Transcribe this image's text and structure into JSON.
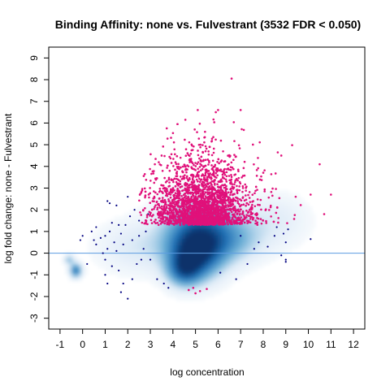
{
  "chart_data": {
    "type": "scatter",
    "title": "Binding Affinity: none vs. Fulvestrant (3532 FDR < 0.050)",
    "xlabel": "log concentration",
    "ylabel": "log fold change: none - Fulvestrant",
    "xlim": [
      -1.5,
      12.5
    ],
    "ylim": [
      -3.5,
      9.5
    ],
    "x_ticks": [
      -1,
      0,
      1,
      2,
      3,
      4,
      5,
      6,
      7,
      8,
      9,
      10,
      11,
      12
    ],
    "y_ticks": [
      -3,
      -2,
      -1,
      0,
      1,
      2,
      3,
      4,
      5,
      6,
      7,
      8,
      9
    ],
    "grid": false,
    "legend": "none",
    "reference_line": {
      "y": 0,
      "color": "#5b9be0"
    },
    "colors": {
      "significant": "#e0117a",
      "nonsignificant": "#000080",
      "density_dark": "#08306b",
      "density_light": "#deebf7"
    },
    "density_clusters": [
      {
        "x": 5.0,
        "y": 0.0,
        "sx": 0.8,
        "sy": 0.8,
        "weight": 1.0
      },
      {
        "x": 5.2,
        "y": 1.2,
        "sx": 1.1,
        "sy": 0.9,
        "weight": 0.55
      },
      {
        "x": 4.5,
        "y": -0.8,
        "sx": 0.5,
        "sy": 0.5,
        "weight": 0.6
      },
      {
        "x": 6.5,
        "y": 0.6,
        "sx": 1.0,
        "sy": 0.7,
        "weight": 0.35
      },
      {
        "x": 2.5,
        "y": 0.3,
        "sx": 1.2,
        "sy": 0.8,
        "weight": 0.18
      },
      {
        "x": -0.3,
        "y": -0.8,
        "sx": 0.18,
        "sy": 0.22,
        "weight": 0.7
      },
      {
        "x": -0.6,
        "y": -0.3,
        "sx": 0.15,
        "sy": 0.15,
        "weight": 0.35
      },
      {
        "x": 8.5,
        "y": 1.5,
        "sx": 1.0,
        "sy": 0.8,
        "weight": 0.15
      }
    ],
    "significant_summary": {
      "count": 3532,
      "x_range": [
        2.5,
        11.2
      ],
      "y_range": [
        1.3,
        6.7
      ],
      "core_center": [
        5.3,
        2.4
      ],
      "outliers": [
        {
          "x": 6.6,
          "y": 8.05
        },
        {
          "x": 7.0,
          "y": 6.6
        },
        {
          "x": 6.0,
          "y": 6.6
        },
        {
          "x": 5.9,
          "y": 6.5
        },
        {
          "x": 5.1,
          "y": 6.6
        },
        {
          "x": 10.5,
          "y": 4.1
        },
        {
          "x": 11.0,
          "y": 2.7
        },
        {
          "x": 10.7,
          "y": 1.8
        },
        {
          "x": 10.1,
          "y": 2.7
        },
        {
          "x": 8.8,
          "y": 4.5
        },
        {
          "x": 3.2,
          "y": 4.1
        },
        {
          "x": 3.5,
          "y": 4.5
        },
        {
          "x": 4.9,
          "y": -1.6
        },
        {
          "x": 4.7,
          "y": -1.7
        },
        {
          "x": 5.2,
          "y": -1.75
        },
        {
          "x": 5.0,
          "y": -1.85
        },
        {
          "x": 5.5,
          "y": -1.65
        }
      ]
    },
    "nonsignificant_points": [
      {
        "x": 0.0,
        "y": 0.8
      },
      {
        "x": -0.1,
        "y": 0.6
      },
      {
        "x": 0.4,
        "y": 1.0
      },
      {
        "x": 0.6,
        "y": 1.2
      },
      {
        "x": 0.5,
        "y": 0.6
      },
      {
        "x": 0.8,
        "y": 0.7
      },
      {
        "x": 1.0,
        "y": 0.8
      },
      {
        "x": 1.2,
        "y": 1.0
      },
      {
        "x": 1.1,
        "y": 0.2
      },
      {
        "x": 0.9,
        "y": 0.0
      },
      {
        "x": 0.6,
        "y": 0.4
      },
      {
        "x": 1.3,
        "y": 1.4
      },
      {
        "x": 1.6,
        "y": 1.3
      },
      {
        "x": 1.9,
        "y": 1.3
      },
      {
        "x": 1.2,
        "y": 2.3
      },
      {
        "x": 1.1,
        "y": 2.4
      },
      {
        "x": 1.5,
        "y": 2.2
      },
      {
        "x": 2.0,
        "y": 2.6
      },
      {
        "x": 2.3,
        "y": 2.0
      },
      {
        "x": 2.1,
        "y": 1.7
      },
      {
        "x": 1.7,
        "y": 0.9
      },
      {
        "x": 1.4,
        "y": 0.5
      },
      {
        "x": 1.8,
        "y": 0.4
      },
      {
        "x": 2.2,
        "y": 0.6
      },
      {
        "x": 2.5,
        "y": 0.8
      },
      {
        "x": 2.8,
        "y": 1.0
      },
      {
        "x": 1.0,
        "y": -0.3
      },
      {
        "x": 1.3,
        "y": -0.6
      },
      {
        "x": 1.0,
        "y": -1.0
      },
      {
        "x": 1.1,
        "y": -1.4
      },
      {
        "x": 1.6,
        "y": -0.8
      },
      {
        "x": 1.8,
        "y": -1.4
      },
      {
        "x": 1.7,
        "y": -1.8
      },
      {
        "x": 2.0,
        "y": -2.1
      },
      {
        "x": 2.2,
        "y": -1.2
      },
      {
        "x": 2.4,
        "y": -0.5
      },
      {
        "x": 2.6,
        "y": -0.3
      },
      {
        "x": 3.0,
        "y": -0.3
      },
      {
        "x": 3.3,
        "y": -1.2
      },
      {
        "x": 3.6,
        "y": -1.4
      },
      {
        "x": 3.8,
        "y": -1.6
      },
      {
        "x": 0.2,
        "y": -0.5
      },
      {
        "x": 1.5,
        "y": 0.1
      },
      {
        "x": 2.7,
        "y": 0.2
      },
      {
        "x": 2.9,
        "y": 1.8
      },
      {
        "x": 2.5,
        "y": 1.5
      },
      {
        "x": 6.8,
        "y": -1.2
      },
      {
        "x": 7.8,
        "y": 0.5
      },
      {
        "x": 8.2,
        "y": 0.3
      },
      {
        "x": 8.5,
        "y": 0.8
      },
      {
        "x": 8.8,
        "y": -0.1
      },
      {
        "x": 9.0,
        "y": -0.3
      },
      {
        "x": 9.0,
        "y": -0.4
      },
      {
        "x": 8.9,
        "y": 0.9
      },
      {
        "x": 9.0,
        "y": 0.5
      },
      {
        "x": 10.1,
        "y": 0.65
      },
      {
        "x": 7.6,
        "y": 0.2
      },
      {
        "x": 7.3,
        "y": -0.5
      },
      {
        "x": 6.1,
        "y": -0.9
      },
      {
        "x": 7.0,
        "y": 0.8
      },
      {
        "x": 8.6,
        "y": 1.2
      },
      {
        "x": 9.1,
        "y": 1.1
      }
    ]
  }
}
